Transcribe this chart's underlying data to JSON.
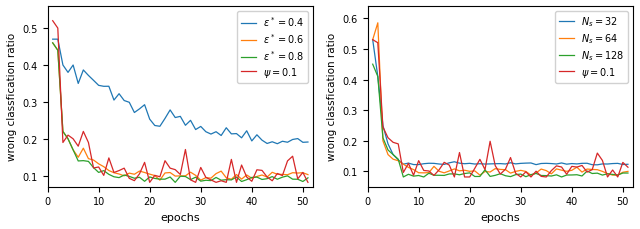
{
  "figsize": [
    6.4,
    2.3
  ],
  "dpi": 100,
  "ylabel": "wrong classfication ratio",
  "xlabel": "epochs",
  "left_ylim": [
    0.07,
    0.56
  ],
  "right_ylim": [
    0.05,
    0.64
  ],
  "left_yticks": [
    0.1,
    0.2,
    0.3,
    0.4,
    0.5
  ],
  "right_yticks": [
    0.1,
    0.2,
    0.3,
    0.4,
    0.5,
    0.6
  ],
  "xticks": [
    0,
    10,
    20,
    30,
    40,
    50
  ],
  "n_epochs": 51,
  "left_legend": [
    {
      "label": "$\\varepsilon^* = 0.4$",
      "color": "#1f77b4"
    },
    {
      "label": "$\\varepsilon^* = 0.6$",
      "color": "#ff7f0e"
    },
    {
      "label": "$\\varepsilon^* = 0.8$",
      "color": "#2ca02c"
    },
    {
      "label": "$\\psi = 0.1$",
      "color": "#d62728"
    }
  ],
  "right_legend": [
    {
      "label": "$N_s = 32$",
      "color": "#1f77b4"
    },
    {
      "label": "$N_s = 64$",
      "color": "#ff7f0e"
    },
    {
      "label": "$N_s = 128$",
      "color": "#2ca02c"
    },
    {
      "label": "$\\psi = 0.1$",
      "color": "#d62728"
    }
  ]
}
